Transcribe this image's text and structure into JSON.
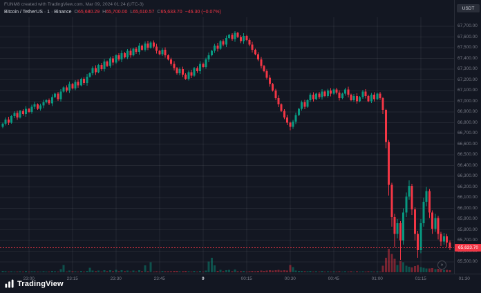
{
  "header": {
    "title": "FUNM8 created with TradingView.com, Mar 09, 2024 01:24 (UTC-3)"
  },
  "legend": {
    "title": "Bitcoin / TetherUS · 1 · Binance",
    "o_label": "O",
    "o": "65,680.29",
    "h_label": "H",
    "h": "65,700.00",
    "l_label": "L",
    "l": "65,610.57",
    "c_label": "C",
    "c": "65,633.70",
    "change": "−46.30 (−0.07%)"
  },
  "price_axis": {
    "unit": "USDT",
    "badge": "65,633.70"
  },
  "footer": {
    "brand": "TradingView"
  },
  "icons": {
    "goto": "»"
  },
  "colors": {
    "background": "#131722",
    "up": "#089981",
    "down": "#f23645",
    "grid": "rgba(255,255,255,0.07)",
    "axis_text": "#787b86",
    "axis_border": "#2a2e39",
    "badge_bg": "#f23645"
  },
  "chart_data": {
    "type": "candlestick",
    "title": "Bitcoin / TetherUS 1m candlestick with volume",
    "symbol": "Bitcoin / TetherUS",
    "interval": "1",
    "exchange": "Binance",
    "unit": "USDT",
    "ylim": [
      65500,
      67700
    ],
    "y_step": 100,
    "last_price": 65633.7,
    "x_ticks": [
      {
        "label": "23:00",
        "m": 10
      },
      {
        "label": "23:15",
        "m": 25
      },
      {
        "label": "23:30",
        "m": 40
      },
      {
        "label": "23:45",
        "m": 55
      },
      {
        "label": "9",
        "m": 70,
        "date": true
      },
      {
        "label": "00:15",
        "m": 85
      },
      {
        "label": "00:30",
        "m": 100
      },
      {
        "label": "00:45",
        "m": 115
      },
      {
        "label": "01:00",
        "m": 130
      },
      {
        "label": "01:15",
        "m": 145
      },
      {
        "label": "01:30",
        "m": 160
      }
    ],
    "candles": [
      [
        66760,
        66800,
        66750,
        66790,
        18
      ],
      [
        66790,
        66847,
        66773,
        66830,
        12
      ],
      [
        66830,
        66854,
        66776,
        66800,
        9
      ],
      [
        66800,
        66870,
        66790,
        66860,
        14
      ],
      [
        66860,
        66907,
        66843,
        66890,
        11
      ],
      [
        66890,
        66914,
        66826,
        66850,
        8
      ],
      [
        66850,
        66920,
        66840,
        66910,
        13
      ],
      [
        66910,
        66927,
        66863,
        66880,
        10
      ],
      [
        66880,
        66954,
        66856,
        66930,
        16
      ],
      [
        66930,
        66940,
        66890,
        66900,
        7
      ],
      [
        66900,
        66967,
        66883,
        66950,
        12
      ],
      [
        66950,
        66994,
        66926,
        66970,
        15
      ],
      [
        66970,
        66980,
        66920,
        66930,
        9
      ],
      [
        66930,
        66977,
        66913,
        66960,
        11
      ],
      [
        66960,
        67014,
        66936,
        66990,
        13
      ],
      [
        66990,
        67020,
        66980,
        67010,
        10
      ],
      [
        67010,
        67027,
        66963,
        66980,
        8
      ],
      [
        66980,
        67064,
        66956,
        67040,
        17
      ],
      [
        67040,
        67080,
        67030,
        67070,
        14
      ],
      [
        67070,
        67087,
        67003,
        67020,
        9
      ],
      [
        67020,
        67114,
        66996,
        67090,
        40
      ],
      [
        67090,
        67140,
        67080,
        67130,
        95
      ],
      [
        67130,
        67147,
        67083,
        67100,
        11
      ],
      [
        67100,
        67184,
        67076,
        67160,
        21
      ],
      [
        67160,
        67170,
        67110,
        67120,
        12
      ],
      [
        67120,
        67197,
        67103,
        67180,
        15
      ],
      [
        67180,
        67204,
        67126,
        67150,
        10
      ],
      [
        67150,
        67220,
        67140,
        67210,
        18
      ],
      [
        67210,
        67227,
        67153,
        67170,
        9
      ],
      [
        67170,
        67254,
        67146,
        67230,
        20
      ],
      [
        67230,
        67270,
        67220,
        67260,
        57
      ],
      [
        67260,
        67327,
        67243,
        67310,
        25
      ],
      [
        67310,
        67334,
        67246,
        67270,
        13
      ],
      [
        67270,
        67350,
        67260,
        67340,
        24
      ],
      [
        67340,
        67357,
        67283,
        67300,
        11
      ],
      [
        67300,
        67394,
        67276,
        67370,
        26
      ],
      [
        67370,
        67380,
        67320,
        67330,
        12
      ],
      [
        67330,
        67417,
        67313,
        67400,
        28
      ],
      [
        67400,
        67424,
        67336,
        67360,
        14
      ],
      [
        67360,
        67440,
        67350,
        67430,
        30
      ],
      [
        67430,
        67447,
        67373,
        67390,
        13
      ],
      [
        67390,
        67474,
        67366,
        67450,
        27
      ],
      [
        67450,
        67460,
        67400,
        67410,
        12
      ],
      [
        67410,
        67487,
        67393,
        67470,
        25
      ],
      [
        67470,
        67494,
        67406,
        67430,
        11
      ],
      [
        67430,
        67500,
        67420,
        67490,
        23
      ],
      [
        67490,
        67507,
        67443,
        67460,
        10
      ],
      [
        67460,
        67544,
        67436,
        67520,
        26
      ],
      [
        67520,
        67530,
        67470,
        67480,
        12
      ],
      [
        67480,
        67557,
        67463,
        67540,
        90
      ],
      [
        67540,
        67564,
        67476,
        67500,
        13
      ],
      [
        67500,
        67560,
        67490,
        67550,
        130
      ],
      [
        67550,
        67567,
        67493,
        67510,
        11
      ],
      [
        67510,
        67534,
        67446,
        67470,
        14
      ],
      [
        67470,
        67480,
        67430,
        67440,
        10
      ],
      [
        67440,
        67497,
        67423,
        67480,
        16
      ],
      [
        67480,
        67504,
        67406,
        67430,
        12
      ],
      [
        67430,
        67440,
        67380,
        67390,
        13
      ],
      [
        67390,
        67407,
        67333,
        67350,
        15
      ],
      [
        67350,
        67374,
        67286,
        67310,
        17
      ],
      [
        67310,
        67320,
        67250,
        67260,
        19
      ],
      [
        67260,
        67317,
        67243,
        67300,
        12
      ],
      [
        67300,
        67324,
        67226,
        67250,
        14
      ],
      [
        67250,
        67260,
        67200,
        67210,
        16
      ],
      [
        67210,
        67287,
        67193,
        67270,
        13
      ],
      [
        67270,
        67294,
        67216,
        67240,
        10
      ],
      [
        67240,
        67320,
        67230,
        67310,
        18
      ],
      [
        67310,
        67327,
        67263,
        67280,
        9
      ],
      [
        67280,
        67374,
        67256,
        67350,
        20
      ],
      [
        67350,
        67360,
        67310,
        67320,
        11
      ],
      [
        67320,
        67407,
        67303,
        67390,
        22
      ],
      [
        67390,
        67454,
        67366,
        67430,
        140
      ],
      [
        67430,
        67480,
        67420,
        67470,
        190
      ],
      [
        67470,
        67537,
        67453,
        67520,
        90
      ],
      [
        67520,
        67544,
        67466,
        67490,
        20
      ],
      [
        67490,
        67570,
        67480,
        67560,
        33
      ],
      [
        67560,
        67577,
        67513,
        67530,
        15
      ],
      [
        67530,
        67614,
        67506,
        67590,
        29
      ],
      [
        67590,
        67630,
        67580,
        67620,
        31
      ],
      [
        67620,
        67637,
        67563,
        67580,
        14
      ],
      [
        67580,
        67655,
        67556,
        67640,
        36
      ],
      [
        67640,
        67650,
        67590,
        67600,
        13
      ],
      [
        67600,
        67617,
        67543,
        67560,
        12
      ],
      [
        67560,
        67634,
        67536,
        67610,
        18
      ],
      [
        67610,
        67620,
        67560,
        67570,
        10
      ],
      [
        67570,
        67587,
        67513,
        67530,
        12
      ],
      [
        67530,
        67554,
        67456,
        67480,
        16
      ],
      [
        67480,
        67490,
        67430,
        67440,
        14
      ],
      [
        67440,
        67457,
        67373,
        67390,
        18
      ],
      [
        67390,
        67414,
        67306,
        67330,
        22
      ],
      [
        67330,
        67340,
        67270,
        67280,
        17
      ],
      [
        67280,
        67297,
        67203,
        67220,
        24
      ],
      [
        67220,
        67244,
        67136,
        67160,
        26
      ],
      [
        67160,
        67170,
        67090,
        67100,
        21
      ],
      [
        67100,
        67117,
        67013,
        67030,
        28
      ],
      [
        67030,
        67054,
        66946,
        66970,
        31
      ],
      [
        66970,
        66980,
        66900,
        66910,
        25
      ],
      [
        66910,
        66927,
        66833,
        66850,
        29
      ],
      [
        66850,
        66874,
        66776,
        66800,
        23
      ],
      [
        66800,
        66810,
        66730,
        66760,
        95
      ],
      [
        66760,
        66827,
        66743,
        66810,
        70
      ],
      [
        66810,
        66894,
        66786,
        66870,
        21
      ],
      [
        66870,
        66940,
        66860,
        66930,
        18
      ],
      [
        66930,
        67007,
        66913,
        66990,
        20
      ],
      [
        66990,
        67014,
        66926,
        66950,
        12
      ],
      [
        66950,
        67020,
        66940,
        67010,
        15
      ],
      [
        67010,
        67077,
        66993,
        67060,
        17
      ],
      [
        67060,
        67084,
        66996,
        67020,
        10
      ],
      [
        67020,
        67080,
        67010,
        67070,
        14
      ],
      [
        67070,
        67087,
        67023,
        67040,
        9
      ],
      [
        67040,
        67114,
        67016,
        67090,
        16
      ],
      [
        67090,
        67100,
        67040,
        67050,
        11
      ],
      [
        67050,
        67117,
        67033,
        67100,
        15
      ],
      [
        67100,
        67124,
        67046,
        67070,
        10
      ],
      [
        67070,
        67120,
        67060,
        67110,
        13
      ],
      [
        67110,
        67127,
        67063,
        67080,
        9
      ],
      [
        67080,
        67104,
        67006,
        67030,
        12
      ],
      [
        67030,
        67080,
        67020,
        67070,
        11
      ],
      [
        67070,
        67127,
        67053,
        67110,
        14
      ],
      [
        67110,
        67134,
        67036,
        67060,
        10
      ],
      [
        67060,
        67070,
        67000,
        67010,
        13
      ],
      [
        67010,
        67067,
        66993,
        67050,
        11
      ],
      [
        67050,
        67074,
        66976,
        67000,
        12
      ],
      [
        67000,
        67050,
        66990,
        67040,
        10
      ],
      [
        67040,
        67107,
        67023,
        67090,
        15
      ],
      [
        67090,
        67114,
        67026,
        67050,
        9
      ],
      [
        67050,
        67060,
        66990,
        67000,
        12
      ],
      [
        67000,
        67077,
        66983,
        67060,
        13
      ],
      [
        67060,
        67084,
        66996,
        67020,
        10
      ],
      [
        67020,
        67080,
        67010,
        67070,
        12
      ],
      [
        67070,
        67087,
        67013,
        67030,
        11
      ],
      [
        67030,
        67040,
        66880,
        66920,
        85
      ],
      [
        66920,
        66930,
        66560,
        66620,
        190
      ],
      [
        66620,
        66640,
        66120,
        66220,
        310
      ],
      [
        66220,
        66240,
        65830,
        65920,
        240
      ],
      [
        65920,
        65950,
        65640,
        65760,
        180
      ],
      [
        65760,
        65900,
        65720,
        65860,
        95
      ],
      [
        65860,
        65880,
        65520,
        65700,
        150
      ],
      [
        65700,
        66000,
        65660,
        65960,
        130
      ],
      [
        65960,
        66150,
        65920,
        66110,
        88
      ],
      [
        66110,
        66260,
        66080,
        66210,
        74
      ],
      [
        66210,
        66230,
        65940,
        65990,
        66
      ],
      [
        65990,
        66010,
        65700,
        65760,
        82
      ],
      [
        65760,
        65790,
        65540,
        65610,
        94
      ],
      [
        65610,
        65900,
        65580,
        65860,
        70
      ],
      [
        65860,
        66100,
        65830,
        66060,
        58
      ],
      [
        66060,
        66200,
        66020,
        66160,
        52
      ],
      [
        66160,
        66180,
        65910,
        65960,
        48
      ],
      [
        65960,
        65980,
        65760,
        65810,
        55
      ],
      [
        65810,
        65950,
        65780,
        65910,
        40
      ],
      [
        65910,
        65930,
        65710,
        65760,
        46
      ],
      [
        65760,
        65780,
        65650,
        65690,
        38
      ],
      [
        65690,
        65770,
        65660,
        65740,
        30
      ],
      [
        65740,
        65760,
        65640,
        65680,
        34
      ],
      [
        65680,
        65700,
        65610,
        65633.7,
        28
      ]
    ]
  }
}
